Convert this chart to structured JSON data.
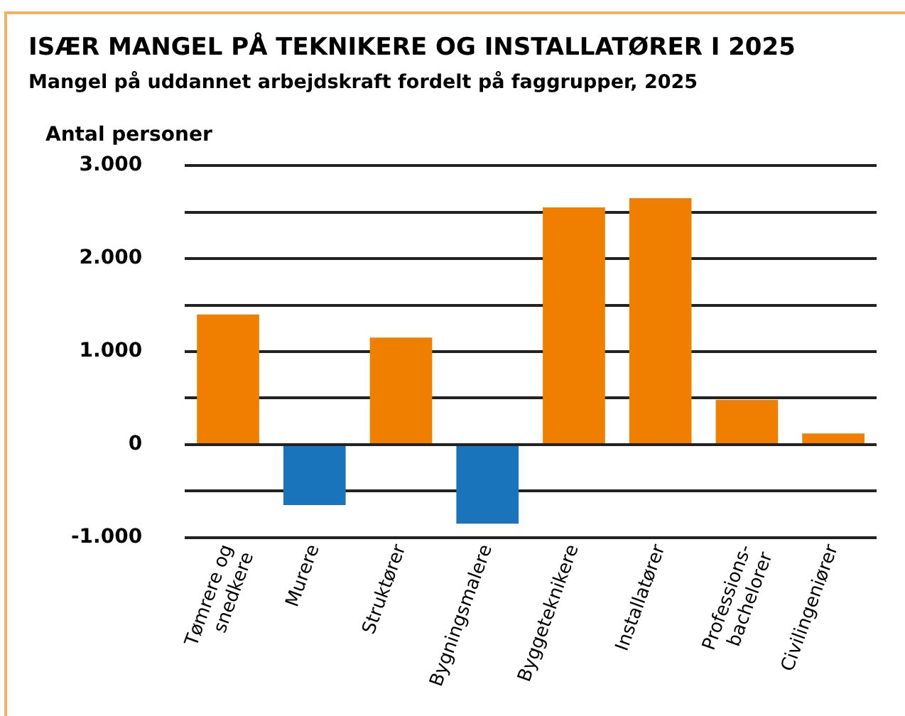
{
  "chart_data": {
    "type": "bar",
    "title": "ISÆR MANGEL PÅ TEKNIKERE OG INSTALLATØRER I 2025",
    "subtitle": "Mangel på uddannet arbejdskraft fordelt på faggrupper, 2025",
    "ylabel": "Antal personer",
    "categories": [
      "Tømrere og snedkere",
      "Murere",
      "Struktører",
      "Bygningsmalere",
      "Byggeteknikere",
      "Installatører",
      "Professions-bachelorer",
      "Civilingeniører"
    ],
    "values": [
      1400,
      -650,
      1150,
      -850,
      2550,
      2650,
      480,
      120
    ],
    "colors": [
      "#f07f00",
      "#1a74bc",
      "#f07f00",
      "#1a74bc",
      "#f07f00",
      "#f07f00",
      "#f07f00",
      "#f07f00"
    ],
    "ylim": [
      -1000,
      3000
    ],
    "yticks": [
      {
        "value": -1000,
        "label": "-1.000"
      },
      {
        "value": -500,
        "label": null
      },
      {
        "value": 0,
        "label": "0"
      },
      {
        "value": 500,
        "label": null
      },
      {
        "value": 1000,
        "label": "1.000"
      },
      {
        "value": 1500,
        "label": null
      },
      {
        "value": 2000,
        "label": "2.000"
      },
      {
        "value": 2500,
        "label": null
      },
      {
        "value": 3000,
        "label": "3.000"
      }
    ],
    "grid": "y",
    "legend": false
  }
}
